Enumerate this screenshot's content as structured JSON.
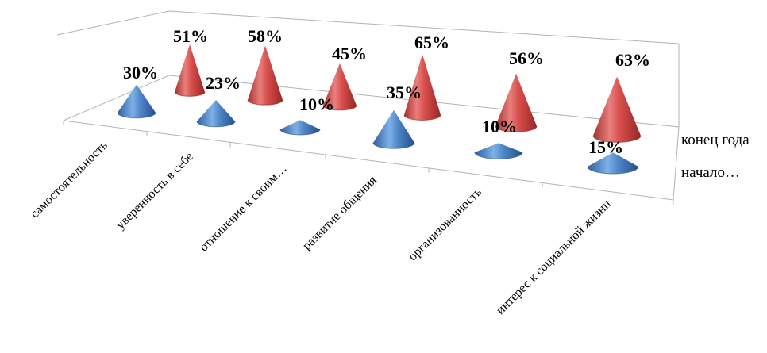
{
  "chart_data": {
    "type": "bar",
    "style": "3d-cone",
    "categories": [
      "самостоятельность",
      "уверенность в себе",
      "отношение к своим…",
      "развитие общения",
      "организованность",
      "интерес к социальной жизни"
    ],
    "series": [
      {
        "name": "начало…",
        "color": "#4a7fc4",
        "values": [
          30,
          23,
          10,
          35,
          10,
          15
        ],
        "labels": [
          "30%",
          "23%",
          "10%",
          "35%",
          "10%",
          "15%"
        ]
      },
      {
        "name": "конец года",
        "color": "#d0504e",
        "values": [
          51,
          58,
          45,
          65,
          56,
          63
        ],
        "labels": [
          "51%",
          "58%",
          "45%",
          "65%",
          "56%",
          "63%"
        ]
      }
    ],
    "unit": "%",
    "legend_position": "right",
    "grid": false
  }
}
